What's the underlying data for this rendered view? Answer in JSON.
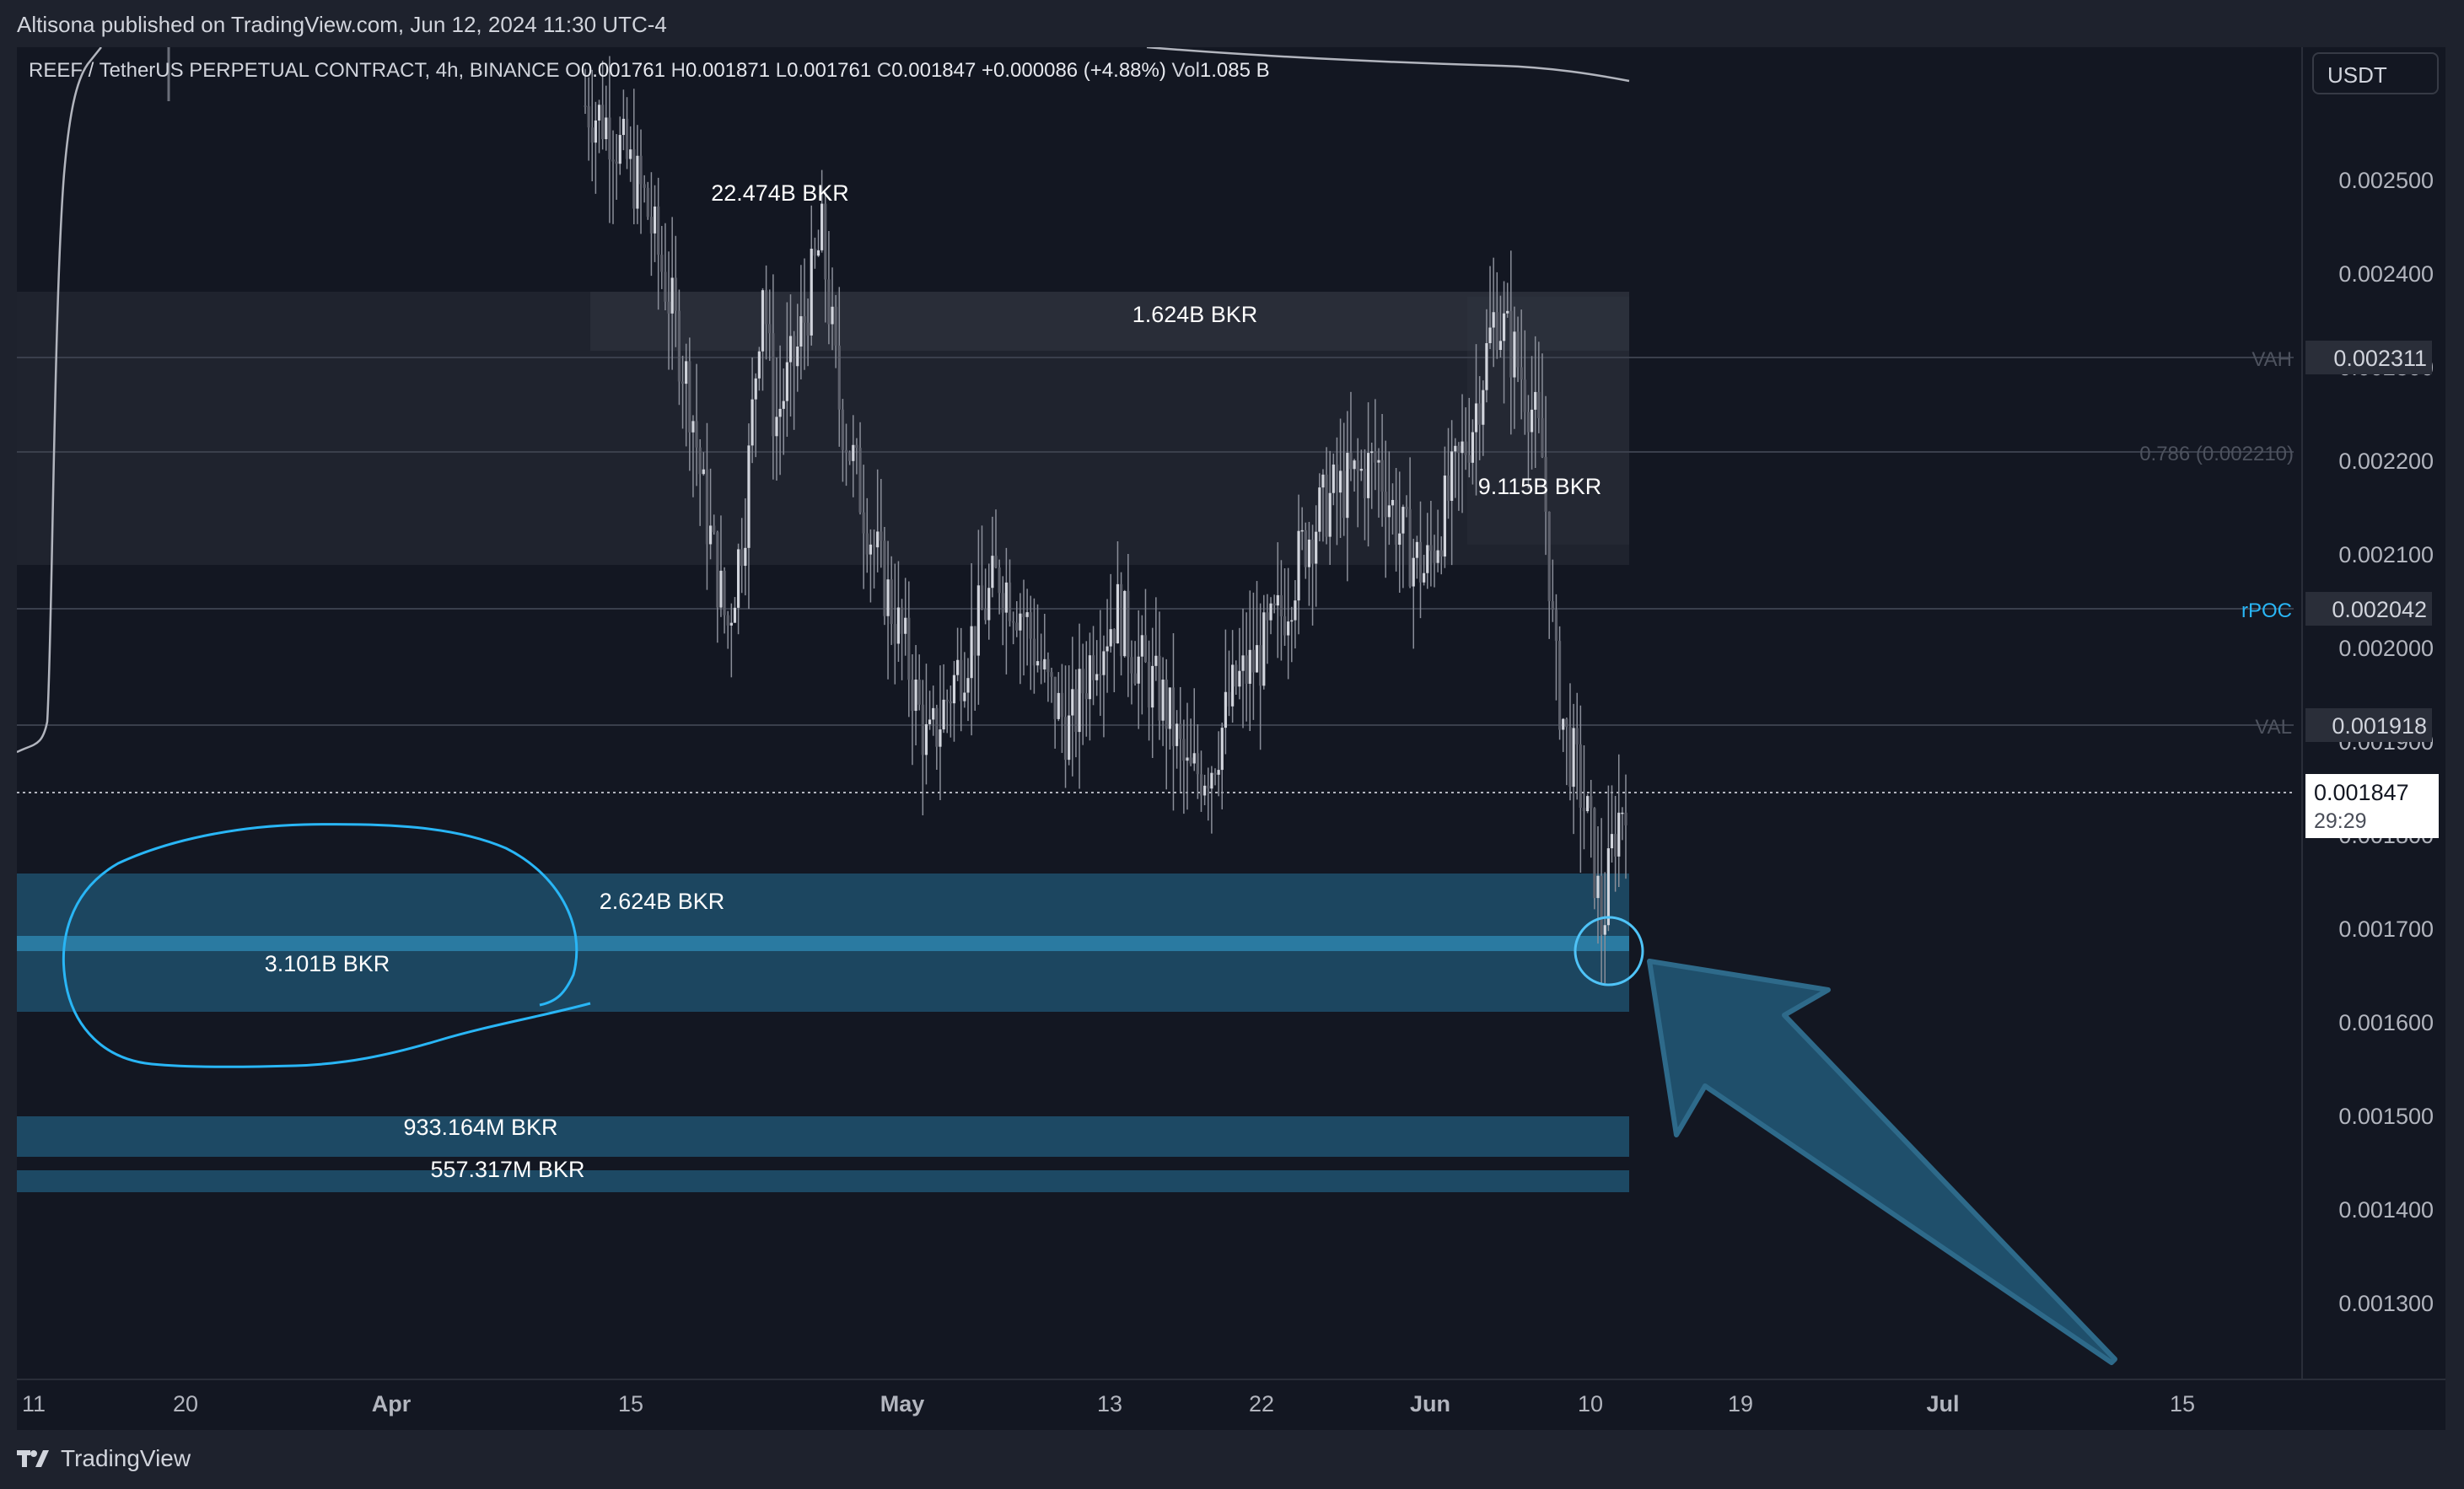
{
  "header": {
    "published": "Altisona published on TradingView.com, Jun 12, 2024 11:30 UTC-4"
  },
  "legend": {
    "symbol": "REEF / TetherUS PERPETUAL CONTRACT, 4h, BINANCE",
    "o_label": "O",
    "o": "0.001761",
    "h_label": "H",
    "h": "0.001871",
    "l_label": "L",
    "l": "0.001761",
    "c_label": "C",
    "c": "0.001847",
    "change": "+0.000086 (+4.88%)",
    "vol_label": "Vol",
    "vol": "1.085 B"
  },
  "currency_button": "USDT",
  "price_axis": {
    "ticks": [
      "0.002500",
      "0.002400",
      "0.002300",
      "0.002200",
      "0.002100",
      "0.002000",
      "0.001900",
      "0.001800",
      "0.001700",
      "0.001600",
      "0.001500",
      "0.001400",
      "0.001300"
    ],
    "tick_values": [
      0.0025,
      0.0024,
      0.0023,
      0.0022,
      0.0021,
      0.002,
      0.0019,
      0.0018,
      0.0017,
      0.0016,
      0.0015,
      0.0014,
      0.0013
    ],
    "vah": {
      "label": "VAH",
      "value": "0.002311"
    },
    "fib": {
      "label": "0.786 (0.002210)"
    },
    "rpoc": {
      "label": "rPOC",
      "value": "0.002042"
    },
    "val": {
      "label": "VAL",
      "value": "0.001918"
    },
    "current": {
      "value": "0.001847",
      "countdown": "29:29"
    }
  },
  "time_axis": [
    "11",
    "20",
    "Apr",
    "15",
    "May",
    "13",
    "22",
    "Jun",
    "10",
    "19",
    "Jul",
    "15"
  ],
  "liquidation_labels": {
    "a": "22.474B BKR",
    "b": "1.624B BKR",
    "c": "9.115B BKR",
    "d": "2.624B BKR",
    "e": "3.101B BKR",
    "f": "933.164M BKR",
    "g": "557.317M BKR"
  },
  "chart_data": {
    "type": "candlestick",
    "symbol": "REEF / TetherUS PERPETUAL CONTRACT",
    "interval": "4h",
    "exchange": "BINANCE",
    "last": {
      "open": 0.001761,
      "high": 0.001871,
      "low": 0.001761,
      "close": 0.001847
    },
    "ylim": [
      0.00123,
      0.00259
    ],
    "levels": {
      "VAH": 0.002311,
      "fib_0_786": 0.00221,
      "rPOC": 0.002042,
      "VAL": 0.001918,
      "current": 0.001847
    },
    "liquidation_zones": [
      {
        "label": "1.624B BKR",
        "low": 0.00206,
        "high": 0.00238
      },
      {
        "label": "9.115B BKR",
        "low": 0.00211,
        "high": 0.00228
      },
      {
        "label": "2.624B BKR / 3.101B BKR",
        "low": 0.00162,
        "high": 0.00176
      },
      {
        "label": "933.164M BKR",
        "low": 0.00146,
        "high": 0.0015
      },
      {
        "label": "557.317M BKR",
        "low": 0.00142,
        "high": 0.00144
      }
    ],
    "path_points": [
      [
        0,
        0.00258
      ],
      [
        4,
        0.00256
      ],
      [
        10,
        0.00248
      ],
      [
        14,
        0.00238
      ],
      [
        18,
        0.00226
      ],
      [
        20,
        0.00216
      ],
      [
        24,
        0.00202
      ],
      [
        27,
        0.00214
      ],
      [
        30,
        0.0024
      ],
      [
        32,
        0.00224
      ],
      [
        36,
        0.00232
      ],
      [
        40,
        0.00244
      ],
      [
        43,
        0.00226
      ],
      [
        46,
        0.00218
      ],
      [
        50,
        0.00208
      ],
      [
        54,
        0.002
      ],
      [
        58,
        0.00189
      ],
      [
        62,
        0.00196
      ],
      [
        66,
        0.00202
      ],
      [
        70,
        0.00208
      ],
      [
        74,
        0.00204
      ],
      [
        78,
        0.00196
      ],
      [
        82,
        0.00191
      ],
      [
        86,
        0.002
      ],
      [
        90,
        0.00204
      ],
      [
        94,
        0.00198
      ],
      [
        98,
        0.00194
      ],
      [
        102,
        0.00186
      ],
      [
        106,
        0.00188
      ],
      [
        110,
        0.00196
      ],
      [
        114,
        0.00199
      ],
      [
        118,
        0.00204
      ],
      [
        122,
        0.00212
      ],
      [
        126,
        0.00216
      ],
      [
        130,
        0.00218
      ],
      [
        134,
        0.0022
      ],
      [
        138,
        0.00212
      ],
      [
        142,
        0.00208
      ],
      [
        146,
        0.00216
      ],
      [
        150,
        0.00224
      ],
      [
        154,
        0.00236
      ],
      [
        158,
        0.0023
      ],
      [
        160,
        0.00226
      ],
      [
        162,
        0.0022
      ],
      [
        164,
        0.00198
      ],
      [
        166,
        0.0019
      ],
      [
        168,
        0.00186
      ],
      [
        170,
        0.0018
      ],
      [
        172,
        0.0017
      ],
      [
        174,
        0.0018
      ],
      [
        176,
        0.00185
      ]
    ]
  }
}
